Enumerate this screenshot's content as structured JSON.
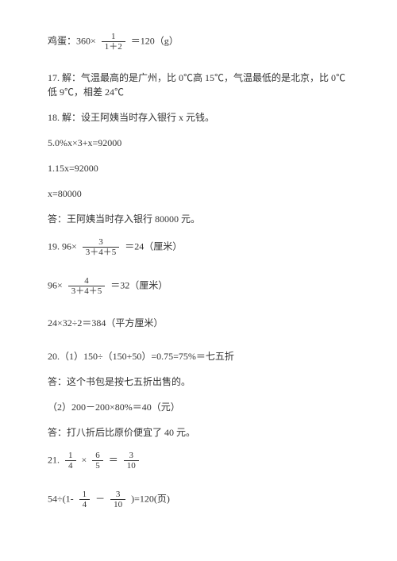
{
  "l1a": "鸡蛋：360×",
  "f1n": "1",
  "f1d": "1＋2",
  "l1b": "＝120（g）",
  "l2": "17. 解：气温最高的是广州，比 0℃高 15℃，气温最低的是北京，比 0℃低 9℃，相差 24℃",
  "l3": "18. 解：设王阿姨当时存入银行 x 元钱。",
  "l4": "5.0%x×3+x=92000",
  "l5": "1.15x=92000",
  "l6": "x=80000",
  "l7": "答：王阿姨当时存入银行 80000 元。",
  "l8a": "19. 96×",
  "f8n": "3",
  "f8d": "3＋4＋5",
  "l8b": "＝24（厘米）",
  "l9a": "96×",
  "f9n": "4",
  "f9d": "3＋4＋5",
  "l9b": "＝32（厘米）",
  "l10": "24×32÷2＝384（平方厘米）",
  "l11": "20.（1）150÷（150+50）=0.75=75%＝七五折",
  "l12": "答：这个书包是按七五折出售的。",
  "l13": "（2）200－200×80%＝40（元）",
  "l14": "答：打八折后比原价便宜了 40 元。",
  "l15a": "21. ",
  "f15an": "1",
  "f15ad": "4",
  "l15b": " × ",
  "f15bn": "6",
  "f15bd": "5",
  "l15c": " ＝ ",
  "f15cn": "3",
  "f15cd": "10",
  "l16a": "54÷(1- ",
  "f16an": "1",
  "f16ad": "4",
  "l16b": " － ",
  "f16bn": "3",
  "f16bd": "10",
  "l16c": " )=120(页)"
}
